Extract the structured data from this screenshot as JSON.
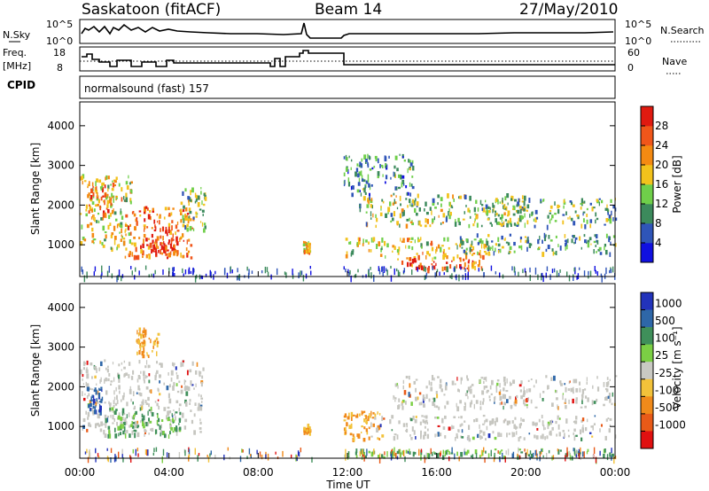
{
  "header": {
    "station": "Saskatoon (fitACF)",
    "beam": "Beam 14",
    "date": "27/May/2010"
  },
  "status_panel": {
    "nsky_label": "N.Sky",
    "nsky_ticks": [
      "10^5",
      "10^0"
    ],
    "nsearch_label": "N.Search",
    "nsearch_ticks": [
      "10^5",
      "10^0"
    ],
    "freq_label": "Freq.",
    "freq_unit": "[MHz]",
    "freq_ticks": [
      "18",
      "8"
    ],
    "nave_label": "Nave",
    "nave_ticks": [
      "60",
      "0"
    ],
    "cpid_label": "CPID",
    "cpid_value": "normalsound (fast) 157"
  },
  "colors": {
    "power_scale": [
      "#1010e0",
      "#2f55b8",
      "#3c8a5c",
      "#6fcf4a",
      "#f2c21c",
      "#f48a12",
      "#f0561a",
      "#e01a10"
    ],
    "velocity_scale": [
      "#2233bb",
      "#2e67a8",
      "#3f8f5a",
      "#7bcf44",
      "#c9c9c3",
      "#f2c23a",
      "#f08a1a",
      "#e85a18",
      "#e01010"
    ],
    "ground_scatter": "#c6c6c0"
  },
  "chart_data": [
    {
      "type": "heatmap",
      "panel": "power",
      "ylabel": "Slant Range [km]",
      "yticks": [
        "1000",
        "2000",
        "3000",
        "4000"
      ],
      "ylim": [
        200,
        4600
      ],
      "xlim": [
        0,
        24
      ],
      "colorbar_label": "Power [dB]",
      "colorbar_ticks": [
        "4",
        "8",
        "12",
        "16",
        "20",
        "24",
        "28"
      ],
      "regions": [
        {
          "t0": 0.0,
          "t1": 2.3,
          "r0": 900,
          "r1": 2800,
          "level": 0.55
        },
        {
          "t0": 0.3,
          "t1": 1.5,
          "r0": 1800,
          "r1": 2600,
          "level": 0.7
        },
        {
          "t0": 2.0,
          "t1": 5.0,
          "r0": 700,
          "r1": 2000,
          "level": 0.75
        },
        {
          "t0": 2.8,
          "t1": 4.4,
          "r0": 800,
          "r1": 1500,
          "level": 0.9
        },
        {
          "t0": 4.5,
          "t1": 5.6,
          "r0": 1400,
          "r1": 2500,
          "level": 0.45
        },
        {
          "t0": 10.0,
          "t1": 10.3,
          "r0": 850,
          "r1": 1100,
          "level": 0.6
        },
        {
          "t0": 11.8,
          "t1": 18.5,
          "r0": 700,
          "r1": 1200,
          "level": 0.55
        },
        {
          "t0": 14.0,
          "t1": 18.0,
          "r0": 400,
          "r1": 700,
          "level": 0.8
        },
        {
          "t0": 12.5,
          "t1": 20.0,
          "r0": 1500,
          "r1": 2300,
          "level": 0.45
        },
        {
          "t0": 17.0,
          "t1": 24.0,
          "r0": 800,
          "r1": 1300,
          "level": 0.35
        },
        {
          "t0": 18.0,
          "t1": 24.0,
          "r0": 1500,
          "r1": 2200,
          "level": 0.4
        },
        {
          "t0": 11.8,
          "t1": 15.0,
          "r0": 2300,
          "r1": 3300,
          "level": 0.3
        }
      ]
    },
    {
      "type": "heatmap",
      "panel": "velocity",
      "ylabel": "Slant Range [km]",
      "yticks": [
        "1000",
        "2000",
        "3000",
        "4000"
      ],
      "ylim": [
        200,
        4600
      ],
      "xlim": [
        0,
        24
      ],
      "xlabel": "Time UT",
      "xticks": [
        "00:00",
        "04:00",
        "08:00",
        "12:00",
        "16:00",
        "20:00",
        "00:00"
      ],
      "colorbar_label": "Velocity [m s⁻¹]",
      "colorbar_ticks": [
        "1000",
        "500",
        "100",
        "25",
        "-25",
        "-100",
        "-500",
        "-1000"
      ],
      "regions": [
        {
          "t0": 0.0,
          "t1": 5.5,
          "r0": 800,
          "r1": 2700,
          "cls": "gs"
        },
        {
          "t0": 0.3,
          "t1": 1.0,
          "r0": 1400,
          "r1": 2000,
          "cls": "blue"
        },
        {
          "t0": 1.2,
          "t1": 4.5,
          "r0": 800,
          "r1": 1500,
          "cls": "green"
        },
        {
          "t0": 2.5,
          "t1": 3.5,
          "r0": 2800,
          "r1": 3500,
          "cls": "orange"
        },
        {
          "t0": 10.0,
          "t1": 10.3,
          "r0": 850,
          "r1": 1100,
          "cls": "orange"
        },
        {
          "t0": 11.8,
          "t1": 13.5,
          "r0": 700,
          "r1": 1400,
          "cls": "orange"
        },
        {
          "t0": 13.0,
          "t1": 24.0,
          "r0": 700,
          "r1": 1300,
          "cls": "gs"
        },
        {
          "t0": 14.0,
          "t1": 24.0,
          "r0": 1500,
          "r1": 2300,
          "cls": "gs"
        },
        {
          "t0": 12.0,
          "t1": 24.0,
          "r0": 250,
          "r1": 450,
          "cls": "green"
        }
      ]
    }
  ]
}
